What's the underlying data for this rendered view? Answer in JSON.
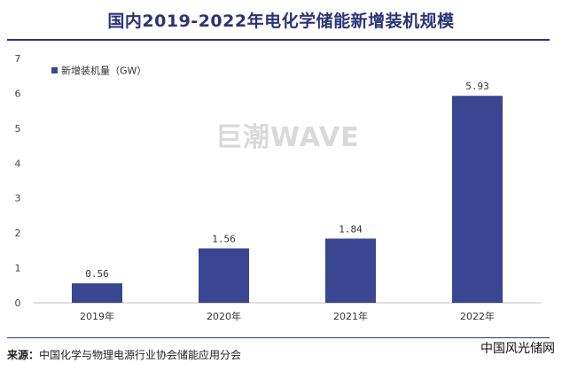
{
  "title": "国内2019-2022年电化学储能新增装机规模",
  "watermark": "巨潮WAVE",
  "source_label": "来源：",
  "source_text": "中国化学与物理电源行业协会储能应用分会",
  "brand": "中国风光储网",
  "colors": {
    "bar": "#3a4691",
    "title": "#2c3476",
    "grid": "#e6e6e6"
  },
  "chart_data": {
    "type": "bar",
    "categories": [
      "2019年",
      "2020年",
      "2021年",
      "2022年"
    ],
    "series": [
      {
        "name": "新增装机量（GW）",
        "values": [
          0.56,
          1.56,
          1.84,
          5.93
        ]
      }
    ],
    "data_labels": [
      "0.56",
      "1.56",
      "1.84",
      "5.93"
    ],
    "yticks": [
      "0",
      "1",
      "2",
      "3",
      "4",
      "5",
      "6",
      "7"
    ],
    "ylim": [
      0,
      7
    ],
    "legend_position": "top-left",
    "grid": false
  }
}
